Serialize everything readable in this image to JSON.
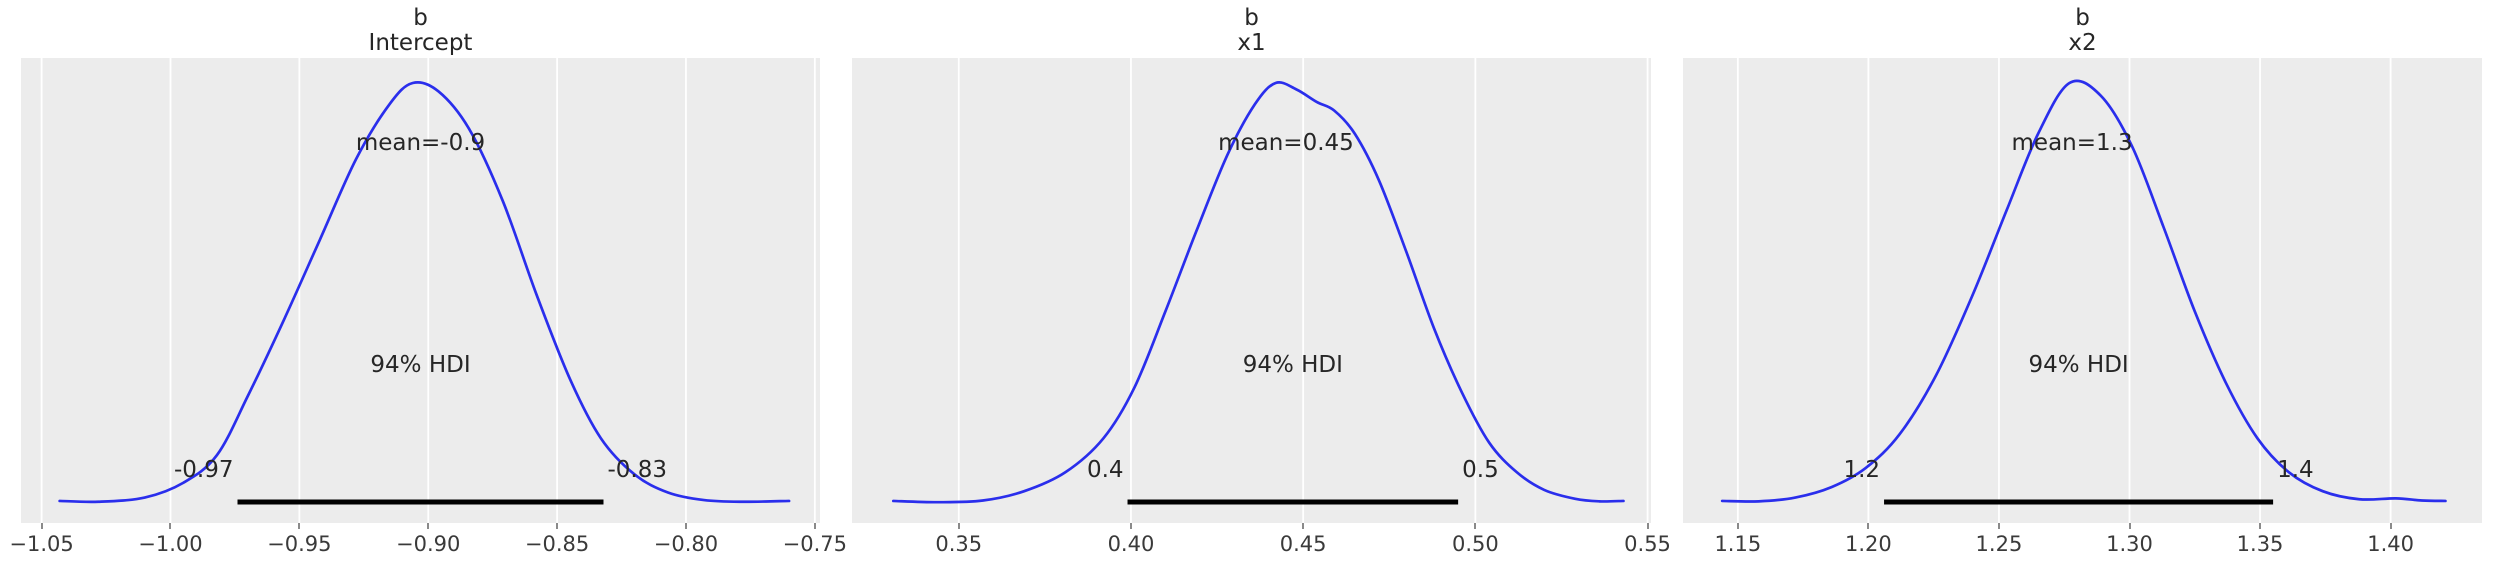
{
  "figure": {
    "background_color": "#ffffff",
    "panel_background_color": "#ececec",
    "grid_color": "#ffffff",
    "curve_color": "#2a2eec",
    "hdi_bar_color": "#000000",
    "text_color": "#262626",
    "tick_text_color": "#3a3a3a"
  },
  "chart_data": [
    {
      "type": "line",
      "title_line1": "b",
      "title_line2": "Intercept",
      "mean_label": "mean=-0.9",
      "mean_value": -0.903,
      "hdi_text": "94% HDI",
      "hdi_lo": -0.974,
      "hdi_hi": -0.832,
      "hdi_lo_label": "-0.97",
      "hdi_hi_label": "-0.83",
      "xlim": [
        -1.058,
        -0.748
      ],
      "xticks": [
        -1.05,
        -1.0,
        -0.95,
        -0.9,
        -0.85,
        -0.8,
        -0.75
      ],
      "xtick_labels": [
        "−1.05",
        "−1.00",
        "−0.95",
        "−0.90",
        "−0.85",
        "−0.80",
        "−0.75"
      ],
      "grid": true,
      "legend": false,
      "curve_points": [
        [
          -1.043,
          0.012
        ],
        [
          -1.028,
          0.01
        ],
        [
          -1.01,
          0.02
        ],
        [
          -0.995,
          0.055
        ],
        [
          -0.982,
          0.12
        ],
        [
          -0.97,
          0.26
        ],
        [
          -0.956,
          0.44
        ],
        [
          -0.942,
          0.63
        ],
        [
          -0.928,
          0.82
        ],
        [
          -0.915,
          0.95
        ],
        [
          -0.906,
          1.0
        ],
        [
          -0.896,
          0.98
        ],
        [
          -0.884,
          0.89
        ],
        [
          -0.871,
          0.72
        ],
        [
          -0.858,
          0.5
        ],
        [
          -0.845,
          0.3
        ],
        [
          -0.833,
          0.16
        ],
        [
          -0.82,
          0.075
        ],
        [
          -0.807,
          0.032
        ],
        [
          -0.793,
          0.014
        ],
        [
          -0.778,
          0.01
        ],
        [
          -0.76,
          0.012
        ]
      ]
    },
    {
      "type": "line",
      "title_line1": "b",
      "title_line2": "x1",
      "mean_label": "mean=0.45",
      "mean_value": 0.445,
      "hdi_text": "94% HDI",
      "hdi_lo": 0.399,
      "hdi_hi": 0.495,
      "hdi_lo_label": "0.4",
      "hdi_hi_label": "0.5",
      "xlim": [
        0.319,
        0.551
      ],
      "xticks": [
        0.35,
        0.4,
        0.45,
        0.5,
        0.55
      ],
      "xtick_labels": [
        "0.35",
        "0.40",
        "0.45",
        "0.50",
        "0.55"
      ],
      "grid": true,
      "legend": false,
      "curve_points": [
        [
          0.331,
          0.012
        ],
        [
          0.344,
          0.009
        ],
        [
          0.357,
          0.013
        ],
        [
          0.369,
          0.035
        ],
        [
          0.381,
          0.08
        ],
        [
          0.392,
          0.16
        ],
        [
          0.401,
          0.28
        ],
        [
          0.41,
          0.46
        ],
        [
          0.419,
          0.65
        ],
        [
          0.428,
          0.83
        ],
        [
          0.436,
          0.95
        ],
        [
          0.442,
          1.0
        ],
        [
          0.448,
          0.985
        ],
        [
          0.454,
          0.955
        ],
        [
          0.459,
          0.935
        ],
        [
          0.465,
          0.88
        ],
        [
          0.472,
          0.77
        ],
        [
          0.48,
          0.6
        ],
        [
          0.488,
          0.42
        ],
        [
          0.496,
          0.27
        ],
        [
          0.504,
          0.15
        ],
        [
          0.512,
          0.08
        ],
        [
          0.52,
          0.038
        ],
        [
          0.529,
          0.017
        ],
        [
          0.536,
          0.011
        ],
        [
          0.543,
          0.012
        ]
      ]
    },
    {
      "type": "line",
      "title_line1": "b",
      "title_line2": "x2",
      "mean_label": "mean=1.3",
      "mean_value": 1.278,
      "hdi_text": "94% HDI",
      "hdi_lo": 1.206,
      "hdi_hi": 1.355,
      "hdi_lo_label": "1.2",
      "hdi_hi_label": "1.4",
      "xlim": [
        1.129,
        1.435
      ],
      "xticks": [
        1.15,
        1.2,
        1.25,
        1.3,
        1.35,
        1.4
      ],
      "xtick_labels": [
        "1.15",
        "1.20",
        "1.25",
        "1.30",
        "1.35",
        "1.40"
      ],
      "grid": true,
      "legend": false,
      "curve_points": [
        [
          1.144,
          0.012
        ],
        [
          1.158,
          0.011
        ],
        [
          1.172,
          0.02
        ],
        [
          1.186,
          0.045
        ],
        [
          1.199,
          0.09
        ],
        [
          1.212,
          0.17
        ],
        [
          1.226,
          0.31
        ],
        [
          1.24,
          0.5
        ],
        [
          1.253,
          0.7
        ],
        [
          1.265,
          0.88
        ],
        [
          1.277,
          1.0
        ],
        [
          1.289,
          0.97
        ],
        [
          1.301,
          0.85
        ],
        [
          1.313,
          0.66
        ],
        [
          1.325,
          0.46
        ],
        [
          1.337,
          0.29
        ],
        [
          1.349,
          0.16
        ],
        [
          1.361,
          0.08
        ],
        [
          1.374,
          0.035
        ],
        [
          1.388,
          0.016
        ],
        [
          1.402,
          0.018
        ],
        [
          1.412,
          0.013
        ],
        [
          1.421,
          0.012
        ]
      ]
    }
  ]
}
